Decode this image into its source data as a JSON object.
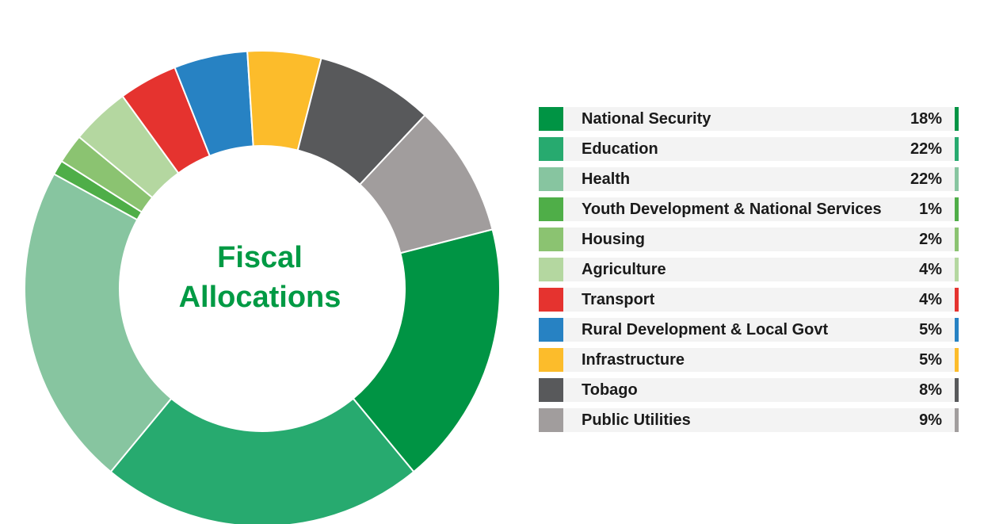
{
  "chart_data": {
    "type": "pie",
    "title": "Fiscal Allocations",
    "title_lines": [
      "Fiscal",
      "Allocations"
    ],
    "legend_position": "right",
    "slices": [
      {
        "label": "National Security",
        "value": 18,
        "display": "18%",
        "color": "#009444"
      },
      {
        "label": "Education",
        "value": 22,
        "display": "22%",
        "color": "#27aa6f"
      },
      {
        "label": "Health",
        "value": 22,
        "display": "22%",
        "color": "#87c5a0"
      },
      {
        "label": "Youth Development & National Services",
        "value": 1,
        "display": "1%",
        "color": "#4fae48"
      },
      {
        "label": "Housing",
        "value": 2,
        "display": "2%",
        "color": "#8bc371"
      },
      {
        "label": "Agriculture",
        "value": 4,
        "display": "4%",
        "color": "#b4d7a0"
      },
      {
        "label": "Transport",
        "value": 4,
        "display": "4%",
        "color": "#e5332f"
      },
      {
        "label": "Rural Development & Local Govt",
        "value": 5,
        "display": "5%",
        "color": "#2782c3"
      },
      {
        "label": "Infrastructure",
        "value": 5,
        "display": "5%",
        "color": "#fcbc2b"
      },
      {
        "label": "Tobago",
        "value": 8,
        "display": "8%",
        "color": "#58595b"
      },
      {
        "label": "Public Utilities",
        "value": 9,
        "display": "9%",
        "color": "#a19d9d"
      }
    ]
  }
}
